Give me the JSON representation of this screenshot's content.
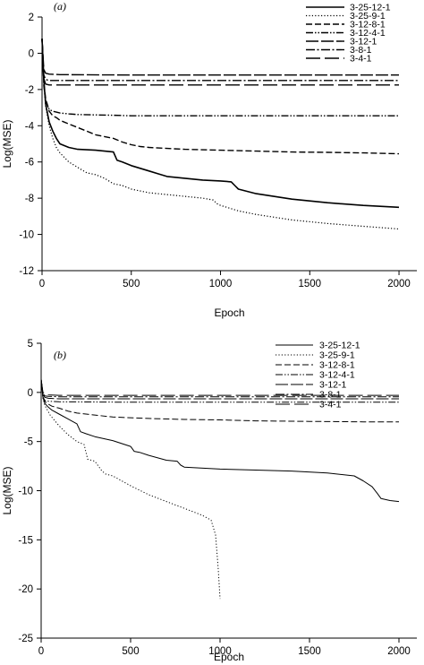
{
  "chart_data": [
    {
      "type": "line",
      "panel_label": "(a)",
      "title": "",
      "xlabel": "Epoch",
      "ylabel": "Log(MSE)",
      "xlim": [
        0,
        2100
      ],
      "ylim": [
        -12,
        2
      ],
      "xticks": [
        0,
        500,
        1000,
        1500,
        2000
      ],
      "yticks": [
        2,
        0,
        -2,
        -4,
        -6,
        -8,
        -10,
        -12
      ],
      "grid": false,
      "legend_position": "top-right",
      "series": [
        {
          "name": "3-25-12-1",
          "style": "solid",
          "width": 1.6,
          "x": [
            0,
            10,
            20,
            40,
            60,
            80,
            100,
            150,
            200,
            300,
            350,
            400,
            420,
            450,
            500,
            600,
            650,
            700,
            800,
            900,
            1000,
            1060,
            1080,
            1100,
            1200,
            1400,
            1600,
            1800,
            2000
          ],
          "y": [
            0.8,
            -1.5,
            -2.8,
            -3.8,
            -4.3,
            -4.7,
            -5.0,
            -5.2,
            -5.3,
            -5.35,
            -5.4,
            -5.45,
            -5.9,
            -6.0,
            -6.2,
            -6.5,
            -6.65,
            -6.8,
            -6.9,
            -7.0,
            -7.05,
            -7.1,
            -7.3,
            -7.5,
            -7.75,
            -8.05,
            -8.25,
            -8.4,
            -8.5
          ]
        },
        {
          "name": "3-25-9-1",
          "style": "dotted",
          "width": 1.2,
          "x": [
            0,
            10,
            20,
            40,
            60,
            80,
            100,
            150,
            200,
            250,
            300,
            350,
            400,
            450,
            500,
            600,
            700,
            800,
            900,
            960,
            980,
            1000,
            1100,
            1200,
            1400,
            1600,
            1800,
            2000
          ],
          "y": [
            0.8,
            -1.6,
            -2.9,
            -4.0,
            -4.7,
            -5.2,
            -5.5,
            -6.0,
            -6.3,
            -6.6,
            -6.7,
            -6.9,
            -7.2,
            -7.3,
            -7.5,
            -7.7,
            -7.8,
            -7.9,
            -8.0,
            -8.1,
            -8.3,
            -8.4,
            -8.7,
            -8.9,
            -9.2,
            -9.4,
            -9.55,
            -9.7
          ]
        },
        {
          "name": "3-12-8-1",
          "style": "dashed",
          "width": 1.4,
          "x": [
            0,
            10,
            20,
            40,
            60,
            80,
            100,
            150,
            200,
            250,
            300,
            350,
            400,
            450,
            500,
            550,
            600,
            700,
            800,
            1000,
            1200,
            1400,
            1600,
            1800,
            2000
          ],
          "y": [
            0.8,
            -1.6,
            -2.5,
            -3.2,
            -3.45,
            -3.55,
            -3.7,
            -3.9,
            -4.1,
            -4.3,
            -4.5,
            -4.6,
            -4.7,
            -4.9,
            -5.05,
            -5.15,
            -5.2,
            -5.25,
            -5.3,
            -5.35,
            -5.4,
            -5.45,
            -5.47,
            -5.5,
            -5.55
          ]
        },
        {
          "name": "3-12-4-1",
          "style": "dashdotdot",
          "width": 1.4,
          "x": [
            0,
            10,
            20,
            40,
            60,
            80,
            100,
            150,
            200,
            300,
            400,
            500,
            700,
            1000,
            1500,
            2000
          ],
          "y": [
            0.8,
            -1.8,
            -2.6,
            -3.1,
            -3.2,
            -3.25,
            -3.3,
            -3.35,
            -3.38,
            -3.4,
            -3.42,
            -3.45,
            -3.45,
            -3.45,
            -3.45,
            -3.45
          ]
        },
        {
          "name": "3-12-1",
          "style": "longdash",
          "width": 1.4,
          "x": [
            0,
            10,
            20,
            40,
            100,
            500,
            1000,
            2000
          ],
          "y": [
            0.8,
            -0.9,
            -1.1,
            -1.15,
            -1.18,
            -1.2,
            -1.2,
            -1.2
          ]
        },
        {
          "name": "3-8-1",
          "style": "dashdot",
          "width": 1.4,
          "x": [
            0,
            10,
            20,
            40,
            100,
            500,
            1000,
            2000
          ],
          "y": [
            0.8,
            -1.2,
            -1.45,
            -1.5,
            -1.5,
            -1.5,
            -1.5,
            -1.5
          ]
        },
        {
          "name": "3-4-1",
          "style": "longdash2",
          "width": 1.4,
          "x": [
            0,
            10,
            20,
            40,
            100,
            500,
            1000,
            2000
          ],
          "y": [
            0.8,
            -1.4,
            -1.7,
            -1.75,
            -1.75,
            -1.75,
            -1.75,
            -1.75
          ]
        }
      ]
    },
    {
      "type": "line",
      "panel_label": "(b)",
      "title": "",
      "xlabel": "Epoch",
      "ylabel": "Log(MSE)",
      "xlim": [
        0,
        2100
      ],
      "ylim": [
        -25,
        5
      ],
      "xticks": [
        0,
        500,
        1000,
        1500,
        2000
      ],
      "yticks": [
        5,
        0,
        -5,
        -10,
        -15,
        -20,
        -25
      ],
      "grid": false,
      "legend_position": "top-right",
      "series": [
        {
          "name": "3-25-12-1",
          "style": "solid",
          "width": 1.0,
          "x": [
            0,
            10,
            20,
            40,
            60,
            100,
            150,
            200,
            220,
            250,
            300,
            400,
            500,
            520,
            550,
            600,
            700,
            760,
            780,
            800,
            1000,
            1200,
            1400,
            1600,
            1750,
            1800,
            1850,
            1880,
            1900,
            1950,
            2000
          ],
          "y": [
            1.3,
            -0.5,
            -1.1,
            -1.5,
            -1.8,
            -2.2,
            -2.7,
            -3.2,
            -4.0,
            -4.2,
            -4.5,
            -4.9,
            -5.5,
            -6.0,
            -6.1,
            -6.4,
            -6.9,
            -7.0,
            -7.4,
            -7.6,
            -7.8,
            -7.9,
            -8.0,
            -8.2,
            -8.5,
            -9.0,
            -9.6,
            -10.3,
            -10.8,
            -11.0,
            -11.1
          ]
        },
        {
          "name": "3-25-9-1",
          "style": "dotted",
          "width": 1.0,
          "x": [
            0,
            10,
            20,
            50,
            100,
            150,
            200,
            240,
            260,
            300,
            340,
            360,
            400,
            500,
            600,
            700,
            800,
            900,
            950,
            975,
            990,
            1000
          ],
          "y": [
            1.3,
            -0.6,
            -1.3,
            -2.3,
            -3.4,
            -4.3,
            -5.0,
            -5.3,
            -6.8,
            -7.0,
            -8.0,
            -8.3,
            -8.5,
            -9.5,
            -10.4,
            -11.1,
            -11.8,
            -12.5,
            -13.0,
            -14.5,
            -18.0,
            -21.0
          ]
        },
        {
          "name": "3-12-8-1",
          "style": "dashed",
          "width": 1.0,
          "x": [
            0,
            10,
            20,
            40,
            60,
            100,
            150,
            200,
            300,
            400,
            600,
            800,
            1000,
            1200,
            1500,
            1800,
            2000
          ],
          "y": [
            1.3,
            -0.4,
            -0.9,
            -1.2,
            -1.4,
            -1.6,
            -1.9,
            -2.1,
            -2.3,
            -2.5,
            -2.65,
            -2.75,
            -2.8,
            -2.9,
            -2.95,
            -3.0,
            -3.0
          ]
        },
        {
          "name": "3-12-4-1",
          "style": "dashdotdot",
          "width": 1.0,
          "x": [
            0,
            10,
            20,
            40,
            100,
            500,
            1000,
            2000
          ],
          "y": [
            1.3,
            -0.5,
            -0.8,
            -0.9,
            -0.95,
            -1.0,
            -1.0,
            -1.0
          ]
        },
        {
          "name": "3-12-1",
          "style": "longdash",
          "width": 1.0,
          "x": [
            0,
            10,
            20,
            40,
            100,
            500,
            1000,
            2000
          ],
          "y": [
            1.3,
            -0.2,
            -0.5,
            -0.6,
            -0.65,
            -0.65,
            -0.65,
            -0.65
          ]
        },
        {
          "name": "3-8-1",
          "style": "dashdot",
          "width": 1.0,
          "x": [
            0,
            10,
            20,
            40,
            100,
            500,
            1000,
            2000
          ],
          "y": [
            1.3,
            -0.1,
            -0.35,
            -0.4,
            -0.45,
            -0.45,
            -0.45,
            -0.45
          ]
        },
        {
          "name": "3-4-1",
          "style": "longdash2",
          "width": 1.0,
          "x": [
            0,
            10,
            20,
            40,
            100,
            500,
            1000,
            2000
          ],
          "y": [
            1.3,
            0.0,
            -0.2,
            -0.25,
            -0.3,
            -0.3,
            -0.3,
            -0.3
          ]
        }
      ]
    }
  ]
}
